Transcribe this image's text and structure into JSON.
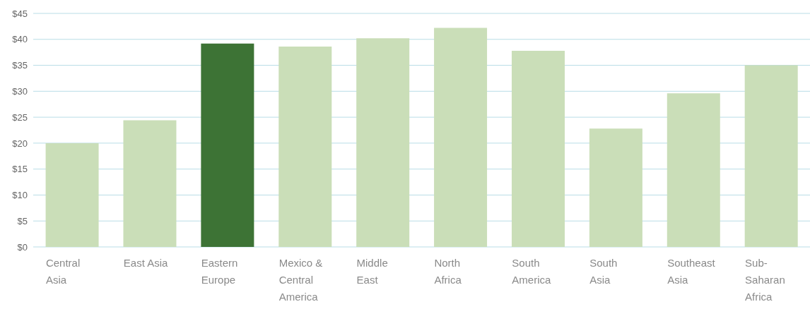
{
  "chart_data": {
    "type": "bar",
    "categories": [
      "Central Asia",
      "East Asia",
      "Eastern Europe",
      "Mexico & Central America",
      "Middle East",
      "North Africa",
      "South America",
      "South Asia",
      "Southeast Asia",
      "Sub-Saharan Africa"
    ],
    "values": [
      20.0,
      24.4,
      39.2,
      38.6,
      40.2,
      42.2,
      37.8,
      22.8,
      29.6,
      35.0
    ],
    "colors": [
      "#cadeb8",
      "#cadeb8",
      "#3d7335",
      "#cadeb8",
      "#cadeb8",
      "#cadeb8",
      "#cadeb8",
      "#cadeb8",
      "#cadeb8",
      "#cadeb8"
    ],
    "ylim": [
      0,
      45
    ],
    "yticks": [
      {
        "value": 0,
        "label": "$0"
      },
      {
        "value": 5,
        "label": "$5"
      },
      {
        "value": 10,
        "label": "$10"
      },
      {
        "value": 15,
        "label": "$15"
      },
      {
        "value": 20,
        "label": "$20"
      },
      {
        "value": 25,
        "label": "$25"
      },
      {
        "value": 30,
        "label": "$30"
      },
      {
        "value": 35,
        "label": "$35"
      },
      {
        "value": 40,
        "label": "$40"
      },
      {
        "value": 45,
        "label": "$45"
      }
    ],
    "grid": "y"
  }
}
